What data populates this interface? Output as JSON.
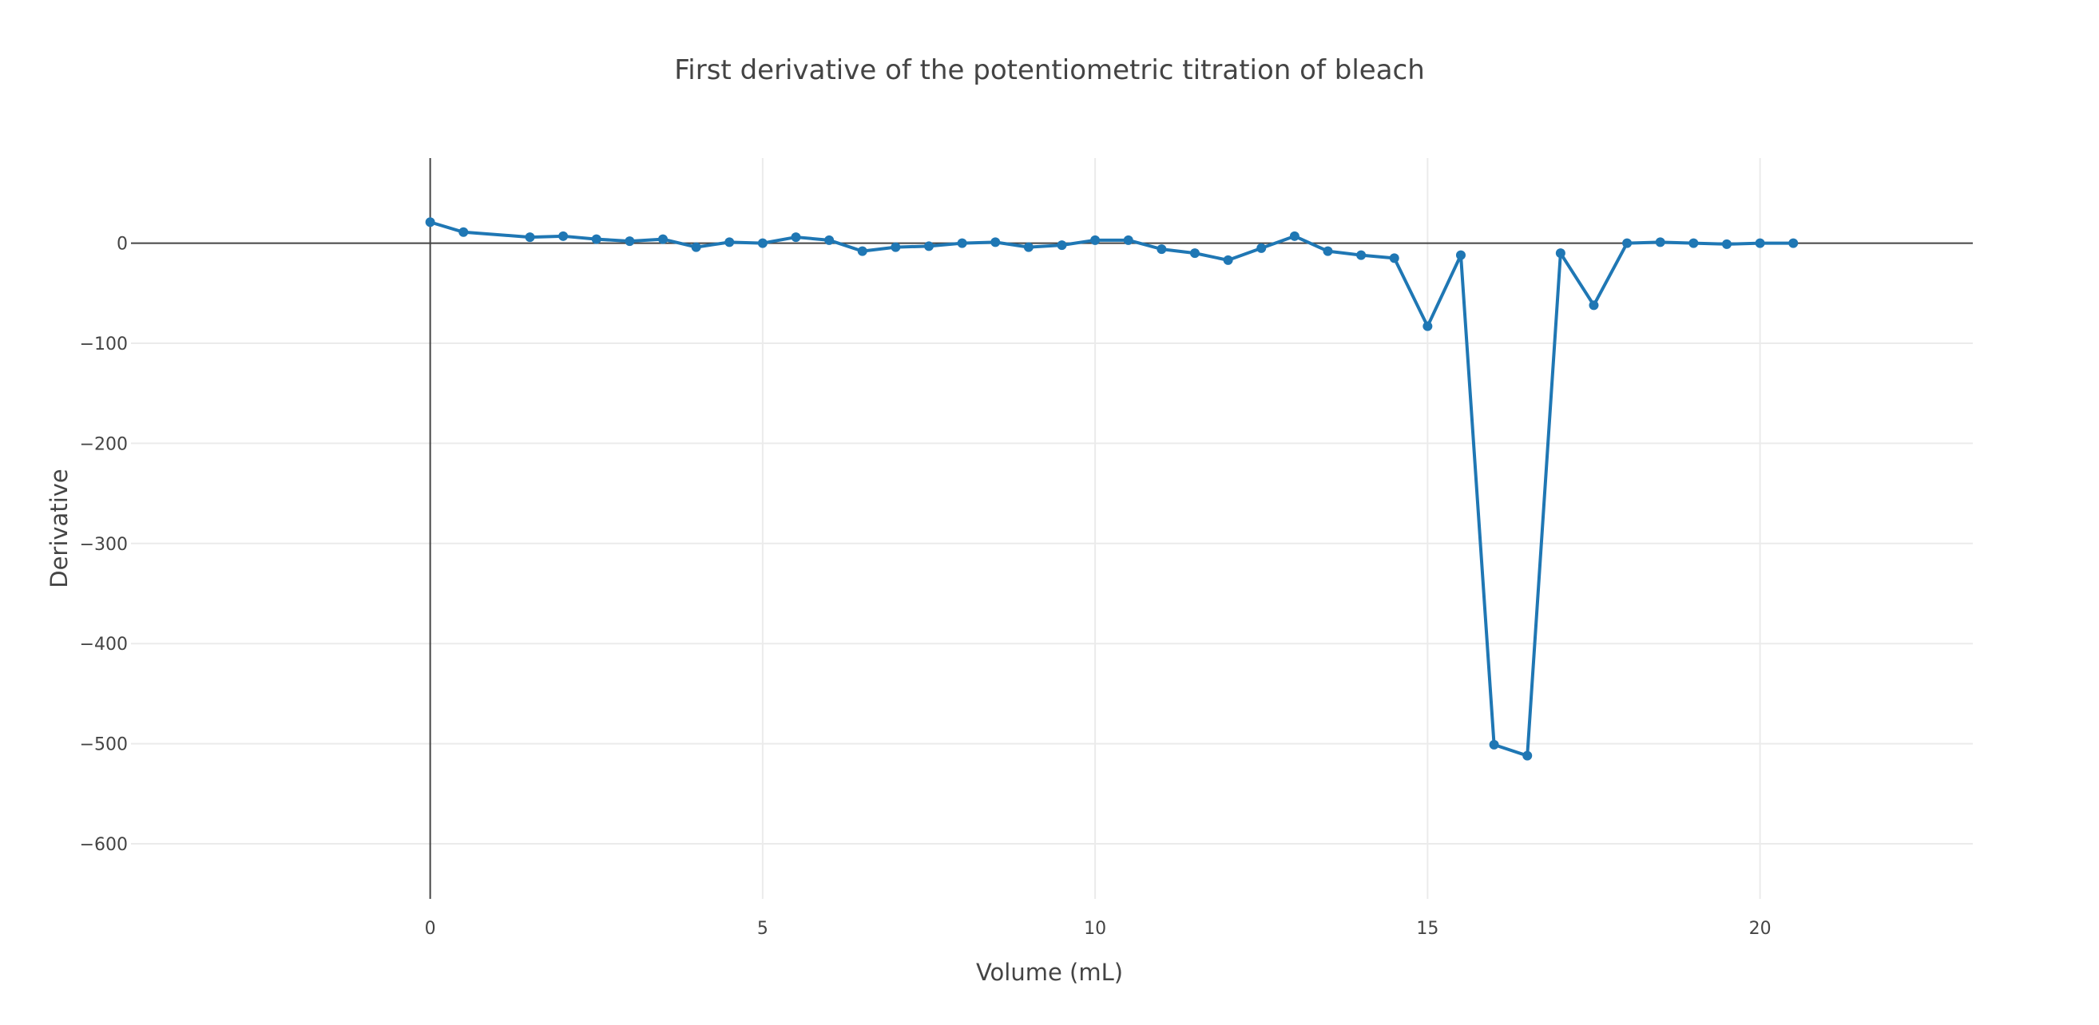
{
  "chart_data": {
    "type": "line",
    "title": "First derivative of the potentiometric titration of bleach",
    "xlabel": "Volume (mL)",
    "ylabel": "Derivative",
    "xlim": [
      -4.5,
      23.2
    ],
    "ylim": [
      -655,
      85
    ],
    "x_ticks": [
      0,
      5,
      10,
      15,
      20
    ],
    "y_ticks": [
      0,
      -100,
      -200,
      -300,
      -400,
      -500,
      -600
    ],
    "grid": true,
    "legend": "none",
    "color": "#1f77b4",
    "x": [
      0,
      0.5,
      1.5,
      2,
      2.5,
      3,
      3.5,
      4,
      4.5,
      5,
      5.5,
      6,
      6.5,
      7,
      7.5,
      8,
      8.5,
      9,
      9.5,
      10,
      10.5,
      11,
      11.5,
      12,
      12.5,
      13,
      13.5,
      14,
      14.5,
      15,
      15.5,
      16,
      16.5,
      17,
      17.5,
      18,
      18.5,
      19,
      19.5,
      20,
      20.5
    ],
    "y": [
      21,
      11,
      6,
      7,
      4,
      2,
      4,
      -4,
      1,
      0,
      6,
      3,
      -8,
      -4,
      -3,
      0,
      1,
      -4,
      -2,
      3,
      3,
      -6,
      -10,
      -17,
      -5,
      7,
      -8,
      -12,
      -15,
      -83,
      -12,
      -501,
      -512,
      -10,
      -62,
      0,
      1,
      0,
      -1,
      0,
      0
    ]
  }
}
